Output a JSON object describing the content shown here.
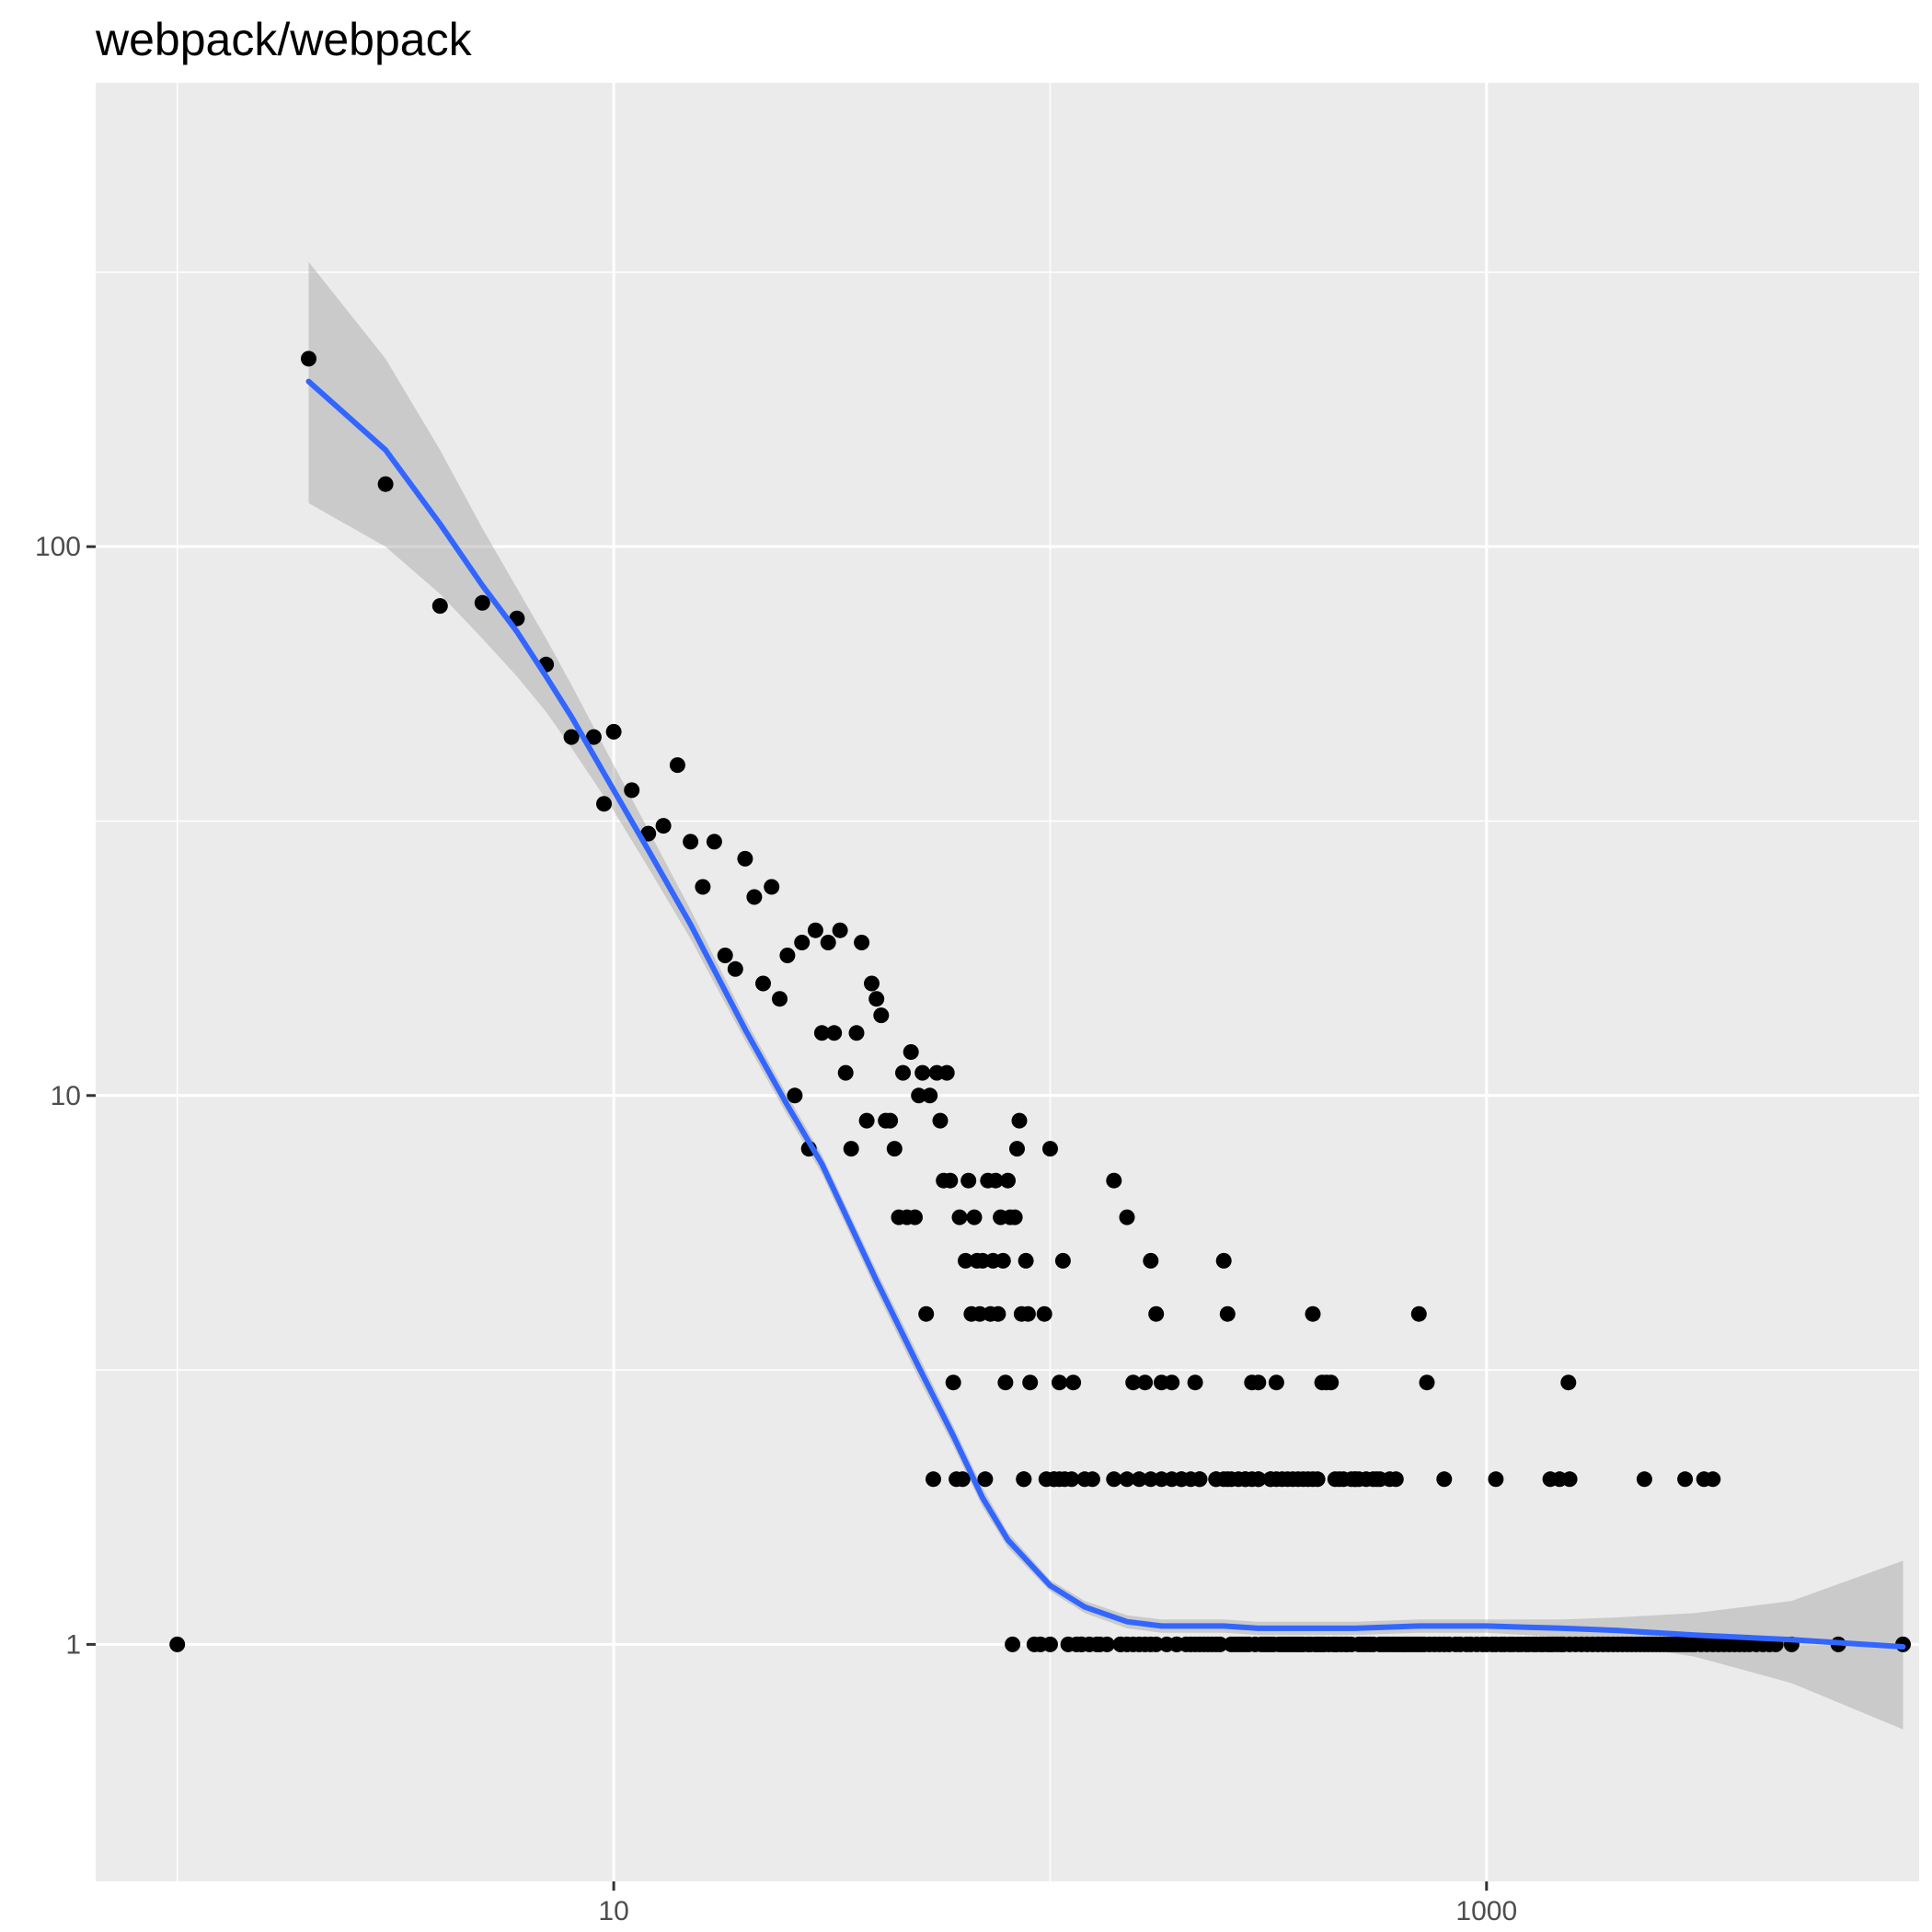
{
  "chart_data": {
    "type": "scatter",
    "title": "webpack/webpack",
    "xlabel": "",
    "ylabel": "",
    "x_scale": "log10",
    "y_scale": "log10",
    "xlim": [
      0.65,
      9800
    ],
    "ylim": [
      0.37,
      700
    ],
    "x_ticks": [
      10,
      1000
    ],
    "x_tick_labels": [
      "10",
      "1000"
    ],
    "y_ticks": [
      1,
      10,
      100
    ],
    "y_tick_labels": [
      "1",
      "10",
      "100"
    ],
    "grid": true,
    "legend": "none",
    "colors": {
      "panel": "#ebebeb",
      "grid": "#ffffff",
      "points": "#000000",
      "smooth_line": "#3366ff",
      "ribbon": "#999999"
    },
    "points": [
      [
        1,
        1
      ],
      [
        2,
        220
      ],
      [
        3,
        130
      ],
      [
        4,
        78
      ],
      [
        5,
        79
      ],
      [
        6,
        74
      ],
      [
        7,
        61
      ],
      [
        8,
        45
      ],
      [
        9,
        45
      ],
      [
        10,
        46
      ],
      [
        9.5,
        34
      ],
      [
        11,
        36
      ],
      [
        12,
        30
      ],
      [
        13,
        31
      ],
      [
        14,
        40
      ],
      [
        15,
        29
      ],
      [
        16,
        24
      ],
      [
        17,
        29
      ],
      [
        18,
        18
      ],
      [
        19,
        17
      ],
      [
        20,
        27
      ],
      [
        21,
        23
      ],
      [
        22,
        16
      ],
      [
        23,
        24
      ],
      [
        24,
        15
      ],
      [
        25,
        18
      ],
      [
        26,
        10
      ],
      [
        27,
        19
      ],
      [
        28,
        8
      ],
      [
        29,
        20
      ],
      [
        30,
        13
      ],
      [
        31,
        19
      ],
      [
        32,
        13
      ],
      [
        33,
        20
      ],
      [
        34,
        11
      ],
      [
        35,
        8
      ],
      [
        36,
        13
      ],
      [
        37,
        19
      ],
      [
        38,
        9
      ],
      [
        39,
        16
      ],
      [
        40,
        15
      ],
      [
        41,
        14
      ],
      [
        42,
        9
      ],
      [
        43,
        9
      ],
      [
        44,
        8
      ],
      [
        45,
        6
      ],
      [
        46,
        11
      ],
      [
        47,
        6
      ],
      [
        48,
        12
      ],
      [
        49,
        6
      ],
      [
        50,
        10
      ],
      [
        51,
        11
      ],
      [
        52,
        4
      ],
      [
        53,
        10
      ],
      [
        54,
        2
      ],
      [
        55,
        11
      ],
      [
        56,
        9
      ],
      [
        57,
        7
      ],
      [
        58,
        11
      ],
      [
        59,
        7
      ],
      [
        60,
        3
      ],
      [
        61,
        2
      ],
      [
        62,
        6
      ],
      [
        63,
        2
      ],
      [
        64,
        5
      ],
      [
        65,
        7
      ],
      [
        66,
        4
      ],
      [
        67,
        6
      ],
      [
        68,
        5
      ],
      [
        69,
        4
      ],
      [
        70,
        5
      ],
      [
        71,
        2
      ],
      [
        72,
        7
      ],
      [
        73,
        4
      ],
      [
        74,
        5
      ],
      [
        75,
        7
      ],
      [
        76,
        4
      ],
      [
        77,
        6
      ],
      [
        78,
        5
      ],
      [
        79,
        3
      ],
      [
        80,
        7
      ],
      [
        81,
        6
      ],
      [
        82,
        1
      ],
      [
        83,
        6
      ],
      [
        84,
        8
      ],
      [
        85,
        9
      ],
      [
        86,
        4
      ],
      [
        87,
        2
      ],
      [
        88,
        5
      ],
      [
        89,
        4
      ],
      [
        90,
        3
      ],
      [
        92,
        1
      ],
      [
        95,
        1
      ],
      [
        97,
        4
      ],
      [
        100,
        8
      ],
      [
        102,
        2
      ],
      [
        105,
        3
      ],
      [
        107,
        5
      ],
      [
        110,
        1
      ],
      [
        113,
        3
      ],
      [
        118,
        1
      ],
      [
        125,
        2
      ],
      [
        130,
        1
      ],
      [
        135,
        1
      ],
      [
        140,
        7
      ],
      [
        145,
        1
      ],
      [
        150,
        6
      ],
      [
        155,
        3
      ],
      [
        160,
        1
      ],
      [
        165,
        3
      ],
      [
        170,
        5
      ],
      [
        175,
        4
      ],
      [
        180,
        3
      ],
      [
        185,
        1
      ],
      [
        190,
        3
      ],
      [
        195,
        1
      ],
      [
        200,
        2
      ],
      [
        205,
        1
      ],
      [
        210,
        1
      ],
      [
        215,
        3
      ],
      [
        220,
        1
      ],
      [
        230,
        1
      ],
      [
        240,
        1
      ],
      [
        250,
        5
      ],
      [
        255,
        4
      ],
      [
        260,
        1
      ],
      [
        270,
        1
      ],
      [
        280,
        1
      ],
      [
        290,
        3
      ],
      [
        300,
        3
      ],
      [
        310,
        1
      ],
      [
        320,
        1
      ],
      [
        330,
        3
      ],
      [
        340,
        1
      ],
      [
        350,
        1
      ],
      [
        360,
        1
      ],
      [
        370,
        1
      ],
      [
        380,
        1
      ],
      [
        390,
        1
      ],
      [
        400,
        4
      ],
      [
        410,
        1
      ],
      [
        420,
        1
      ],
      [
        430,
        3
      ],
      [
        440,
        3
      ],
      [
        450,
        1
      ],
      [
        460,
        2
      ],
      [
        480,
        1
      ],
      [
        500,
        2
      ],
      [
        520,
        1
      ],
      [
        540,
        1
      ],
      [
        560,
        2
      ],
      [
        580,
        1
      ],
      [
        600,
        1
      ],
      [
        620,
        1
      ],
      [
        640,
        1
      ],
      [
        660,
        1
      ],
      [
        680,
        1
      ],
      [
        700,
        1
      ],
      [
        720,
        1
      ],
      [
        760,
        1
      ],
      [
        800,
        1
      ],
      [
        850,
        1
      ],
      [
        900,
        1
      ],
      [
        950,
        1
      ],
      [
        1000,
        1
      ],
      [
        1050,
        1
      ],
      [
        1100,
        1
      ],
      [
        1150,
        1
      ],
      [
        1200,
        1
      ],
      [
        1250,
        1
      ],
      [
        1300,
        1
      ],
      [
        1350,
        1
      ],
      [
        1400,
        1
      ],
      [
        1450,
        1
      ],
      [
        1500,
        1
      ],
      [
        1600,
        1
      ],
      [
        1700,
        1
      ],
      [
        1800,
        1
      ],
      [
        1900,
        1
      ],
      [
        2000,
        1
      ],
      [
        2100,
        1
      ],
      [
        2200,
        1
      ],
      [
        2300,
        1
      ],
      [
        2400,
        1
      ],
      [
        2500,
        1
      ],
      [
        2600,
        1
      ],
      [
        2700,
        1
      ],
      [
        2800,
        1
      ],
      [
        2900,
        1
      ],
      [
        3000,
        1
      ],
      [
        3200,
        1
      ],
      [
        3400,
        1
      ],
      [
        3600,
        1
      ],
      [
        3800,
        1
      ],
      [
        4000,
        1
      ],
      [
        4300,
        1
      ],
      [
        4600,
        1
      ],
      [
        5000,
        1
      ],
      [
        6400,
        1
      ],
      [
        9000,
        1
      ],
      [
        87,
        2
      ],
      [
        98,
        2
      ],
      [
        102,
        2
      ],
      [
        105,
        2
      ],
      [
        108,
        2
      ],
      [
        112,
        2
      ],
      [
        120,
        2
      ],
      [
        140,
        2
      ],
      [
        150,
        2
      ],
      [
        160,
        2
      ],
      [
        170,
        2
      ],
      [
        180,
        2
      ],
      [
        190,
        2
      ],
      [
        200,
        2
      ],
      [
        210,
        2
      ],
      [
        220,
        2
      ],
      [
        240,
        2
      ],
      [
        260,
        2
      ],
      [
        280,
        2
      ],
      [
        300,
        2
      ],
      [
        320,
        2
      ],
      [
        350,
        2
      ],
      [
        380,
        2
      ],
      [
        400,
        2
      ],
      [
        450,
        2
      ],
      [
        500,
        2
      ],
      [
        600,
        2
      ],
      [
        800,
        2
      ],
      [
        1050,
        2
      ],
      [
        1400,
        2
      ],
      [
        1470,
        2
      ],
      [
        1550,
        2
      ],
      [
        2300,
        2
      ],
      [
        2850,
        2
      ],
      [
        3150,
        2
      ],
      [
        3300,
        2
      ],
      [
        420,
        3
      ],
      [
        700,
        4
      ],
      [
        730,
        3
      ],
      [
        1540,
        3
      ],
      [
        220,
        2
      ],
      [
        240,
        2
      ],
      [
        250,
        2
      ],
      [
        255,
        2
      ],
      [
        270,
        2
      ],
      [
        280,
        2
      ],
      [
        290,
        2
      ],
      [
        300,
        2
      ],
      [
        320,
        2
      ],
      [
        330,
        2
      ],
      [
        340,
        2
      ],
      [
        360,
        2
      ],
      [
        370,
        2
      ],
      [
        390,
        2
      ],
      [
        410,
        2
      ],
      [
        470,
        2
      ],
      [
        490,
        2
      ],
      [
        510,
        2
      ],
      [
        530,
        2
      ],
      [
        550,
        2
      ],
      [
        570,
        2
      ],
      [
        620,
        2
      ],
      [
        100,
        1
      ],
      [
        115,
        1
      ],
      [
        118,
        1
      ],
      [
        123,
        1
      ],
      [
        128,
        1
      ],
      [
        145,
        1
      ],
      [
        150,
        1
      ],
      [
        155,
        1
      ],
      [
        165,
        1
      ],
      [
        170,
        1
      ],
      [
        175,
        1
      ],
      [
        195,
        1
      ],
      [
        215,
        1
      ],
      [
        225,
        1
      ],
      [
        235,
        1
      ],
      [
        245,
        1
      ],
      [
        265,
        1
      ],
      [
        275,
        1
      ],
      [
        285,
        1
      ],
      [
        295,
        1
      ],
      [
        305,
        1
      ],
      [
        315,
        1
      ],
      [
        325,
        1
      ],
      [
        335,
        1
      ],
      [
        345,
        1
      ],
      [
        355,
        1
      ],
      [
        365,
        1
      ],
      [
        375,
        1
      ],
      [
        395,
        1
      ],
      [
        405,
        1
      ],
      [
        415,
        1
      ],
      [
        425,
        1
      ],
      [
        435,
        1
      ],
      [
        445,
        1
      ],
      [
        455,
        1
      ],
      [
        465,
        1
      ],
      [
        475,
        1
      ],
      [
        490,
        1
      ],
      [
        510,
        1
      ],
      [
        530,
        1
      ],
      [
        550,
        1
      ],
      [
        570,
        1
      ],
      [
        590,
        1
      ],
      [
        610,
        1
      ],
      [
        630,
        1
      ],
      [
        650,
        1
      ],
      [
        670,
        1
      ],
      [
        690,
        1
      ],
      [
        710,
        1
      ],
      [
        740,
        1
      ],
      [
        780,
        1
      ],
      [
        820,
        1
      ],
      [
        870,
        1
      ],
      [
        920,
        1
      ],
      [
        980,
        1
      ],
      [
        1030,
        1
      ],
      [
        1080,
        1
      ],
      [
        1130,
        1
      ],
      [
        1180,
        1
      ],
      [
        1230,
        1
      ],
      [
        1280,
        1
      ],
      [
        1330,
        1
      ],
      [
        1380,
        1
      ],
      [
        1420,
        1
      ],
      [
        1480,
        1
      ],
      [
        1550,
        1
      ],
      [
        1650,
        1
      ],
      [
        1750,
        1
      ],
      [
        1850,
        1
      ],
      [
        1950,
        1
      ],
      [
        2050,
        1
      ],
      [
        2150,
        1
      ],
      [
        2250,
        1
      ],
      [
        2350,
        1
      ],
      [
        2450,
        1
      ],
      [
        2550,
        1
      ],
      [
        2650,
        1
      ],
      [
        2750,
        1
      ],
      [
        2850,
        1
      ],
      [
        2950,
        1
      ],
      [
        3100,
        1
      ],
      [
        3300,
        1
      ],
      [
        3500,
        1
      ],
      [
        3700,
        1
      ],
      [
        3900,
        1
      ],
      [
        4150,
        1
      ],
      [
        4450,
        1
      ]
    ],
    "smooth": {
      "x": [
        2,
        3,
        4,
        5,
        6,
        7,
        8,
        10,
        12,
        15,
        20,
        25,
        30,
        40,
        50,
        60,
        70,
        80,
        100,
        120,
        150,
        180,
        200,
        250,
        300,
        400,
        500,
        700,
        1000,
        1500,
        2000,
        3000,
        5000,
        9000
      ],
      "y": [
        200,
        150,
        110,
        85,
        70,
        58,
        49,
        36,
        28,
        20.5,
        13.2,
        9.6,
        7.5,
        4.6,
        3.2,
        2.4,
        1.85,
        1.55,
        1.28,
        1.17,
        1.1,
        1.08,
        1.08,
        1.08,
        1.07,
        1.07,
        1.07,
        1.08,
        1.08,
        1.07,
        1.06,
        1.04,
        1.02,
        0.99
      ],
      "ymin": [
        120,
        100,
        82,
        68,
        58,
        50,
        43,
        33,
        26,
        19.3,
        12.6,
        9.2,
        7.2,
        4.4,
        3.05,
        2.3,
        1.78,
        1.5,
        1.25,
        1.14,
        1.07,
        1.05,
        1.05,
        1.05,
        1.04,
        1.04,
        1.04,
        1.05,
        1.05,
        1.03,
        1.0,
        0.95,
        0.85,
        0.7
      ],
      "ymax": [
        330,
        220,
        150,
        108,
        84,
        68,
        56,
        40,
        30.5,
        21.8,
        13.8,
        10.0,
        7.8,
        4.8,
        3.35,
        2.5,
        1.93,
        1.6,
        1.31,
        1.2,
        1.13,
        1.11,
        1.11,
        1.11,
        1.1,
        1.1,
        1.1,
        1.11,
        1.11,
        1.11,
        1.12,
        1.14,
        1.2,
        1.42
      ]
    }
  }
}
